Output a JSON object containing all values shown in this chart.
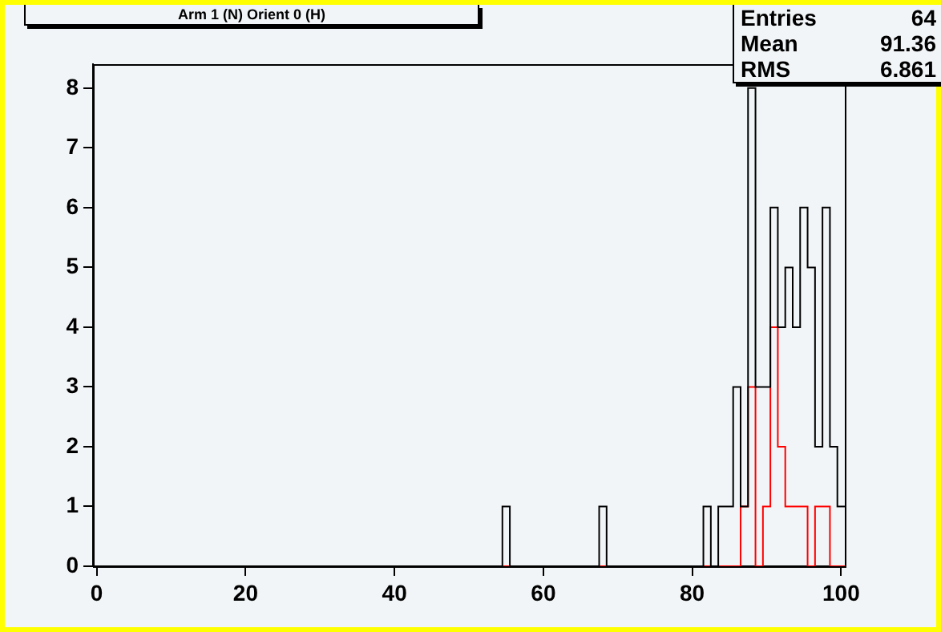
{
  "chart_data": {
    "type": "histogram",
    "title": "Arm 1 (N) Orient 0 (H)",
    "bins": [
      -0.5,
      0.5,
      1.5,
      2.5,
      3.5,
      4.5,
      5.5,
      6.5,
      7.5,
      8.5,
      9.5,
      10.5,
      11.5,
      12.5,
      13.5,
      14.5,
      15.5,
      16.5,
      17.5,
      18.5,
      19.5,
      20.5,
      21.5,
      22.5,
      23.5,
      24.5,
      25.5,
      26.5,
      27.5,
      28.5,
      29.5,
      30.5,
      31.5,
      32.5,
      33.5,
      34.5,
      35.5,
      36.5,
      37.5,
      38.5,
      39.5,
      40.5,
      41.5,
      42.5,
      43.5,
      44.5,
      45.5,
      46.5,
      47.5,
      48.5,
      49.5,
      50.5,
      51.5,
      52.5,
      53.5,
      54.5,
      55.5,
      56.5,
      57.5,
      58.5,
      59.5,
      60.5,
      61.5,
      62.5,
      63.5,
      64.5,
      65.5,
      66.5,
      67.5,
      68.5,
      69.5,
      70.5,
      71.5,
      72.5,
      73.5,
      74.5,
      75.5,
      76.5,
      77.5,
      78.5,
      79.5,
      80.5,
      81.5,
      82.5,
      83.5,
      84.5,
      85.5,
      86.5,
      87.5,
      88.5,
      89.5,
      90.5,
      91.5,
      92.5,
      93.5,
      94.5,
      95.5,
      96.5,
      97.5,
      98.5,
      99.5,
      100.5
    ],
    "series": [
      {
        "color": "#000000",
        "values": [
          0,
          0,
          0,
          0,
          0,
          0,
          0,
          0,
          0,
          0,
          0,
          0,
          0,
          0,
          0,
          0,
          0,
          0,
          0,
          0,
          0,
          0,
          0,
          0,
          0,
          0,
          0,
          0,
          0,
          0,
          0,
          0,
          0,
          0,
          0,
          0,
          0,
          0,
          0,
          0,
          0,
          0,
          0,
          0,
          0,
          0,
          0,
          0,
          0,
          0,
          0,
          0,
          0,
          0,
          0,
          1,
          0,
          0,
          0,
          0,
          0,
          0,
          0,
          0,
          0,
          0,
          0,
          0,
          1,
          0,
          0,
          0,
          0,
          0,
          0,
          0,
          0,
          0,
          0,
          0,
          0,
          0,
          1,
          0,
          1,
          1,
          3,
          1,
          8,
          3,
          3,
          6,
          4,
          5,
          4,
          6,
          5,
          2,
          6,
          2,
          1
        ]
      },
      {
        "color": "#ff0000",
        "values": [
          0,
          0,
          0,
          0,
          0,
          0,
          0,
          0,
          0,
          0,
          0,
          0,
          0,
          0,
          0,
          0,
          0,
          0,
          0,
          0,
          0,
          0,
          0,
          0,
          0,
          0,
          0,
          0,
          0,
          0,
          0,
          0,
          0,
          0,
          0,
          0,
          0,
          0,
          0,
          0,
          0,
          0,
          0,
          0,
          0,
          0,
          0,
          0,
          0,
          0,
          0,
          0,
          0,
          0,
          0,
          0,
          0,
          0,
          0,
          0,
          0,
          0,
          0,
          0,
          0,
          0,
          0,
          0,
          0,
          0,
          0,
          0,
          0,
          0,
          0,
          0,
          0,
          0,
          0,
          0,
          0,
          0,
          0,
          0,
          0,
          0,
          0,
          1,
          3,
          0,
          1,
          4,
          2,
          1,
          1,
          1,
          0,
          1,
          1,
          0,
          0
        ]
      }
    ],
    "xlim": [
      -0.5,
      100.5
    ],
    "xticks": [
      0,
      20,
      40,
      60,
      80,
      100
    ],
    "ylim": [
      0,
      8.4
    ],
    "yticks": [
      0,
      1,
      2,
      3,
      4,
      5,
      6,
      7,
      8
    ],
    "grid": false,
    "legend": false,
    "annotations": [
      "Entries 64",
      "Mean 91.36",
      "RMS 6.861"
    ]
  }
}
